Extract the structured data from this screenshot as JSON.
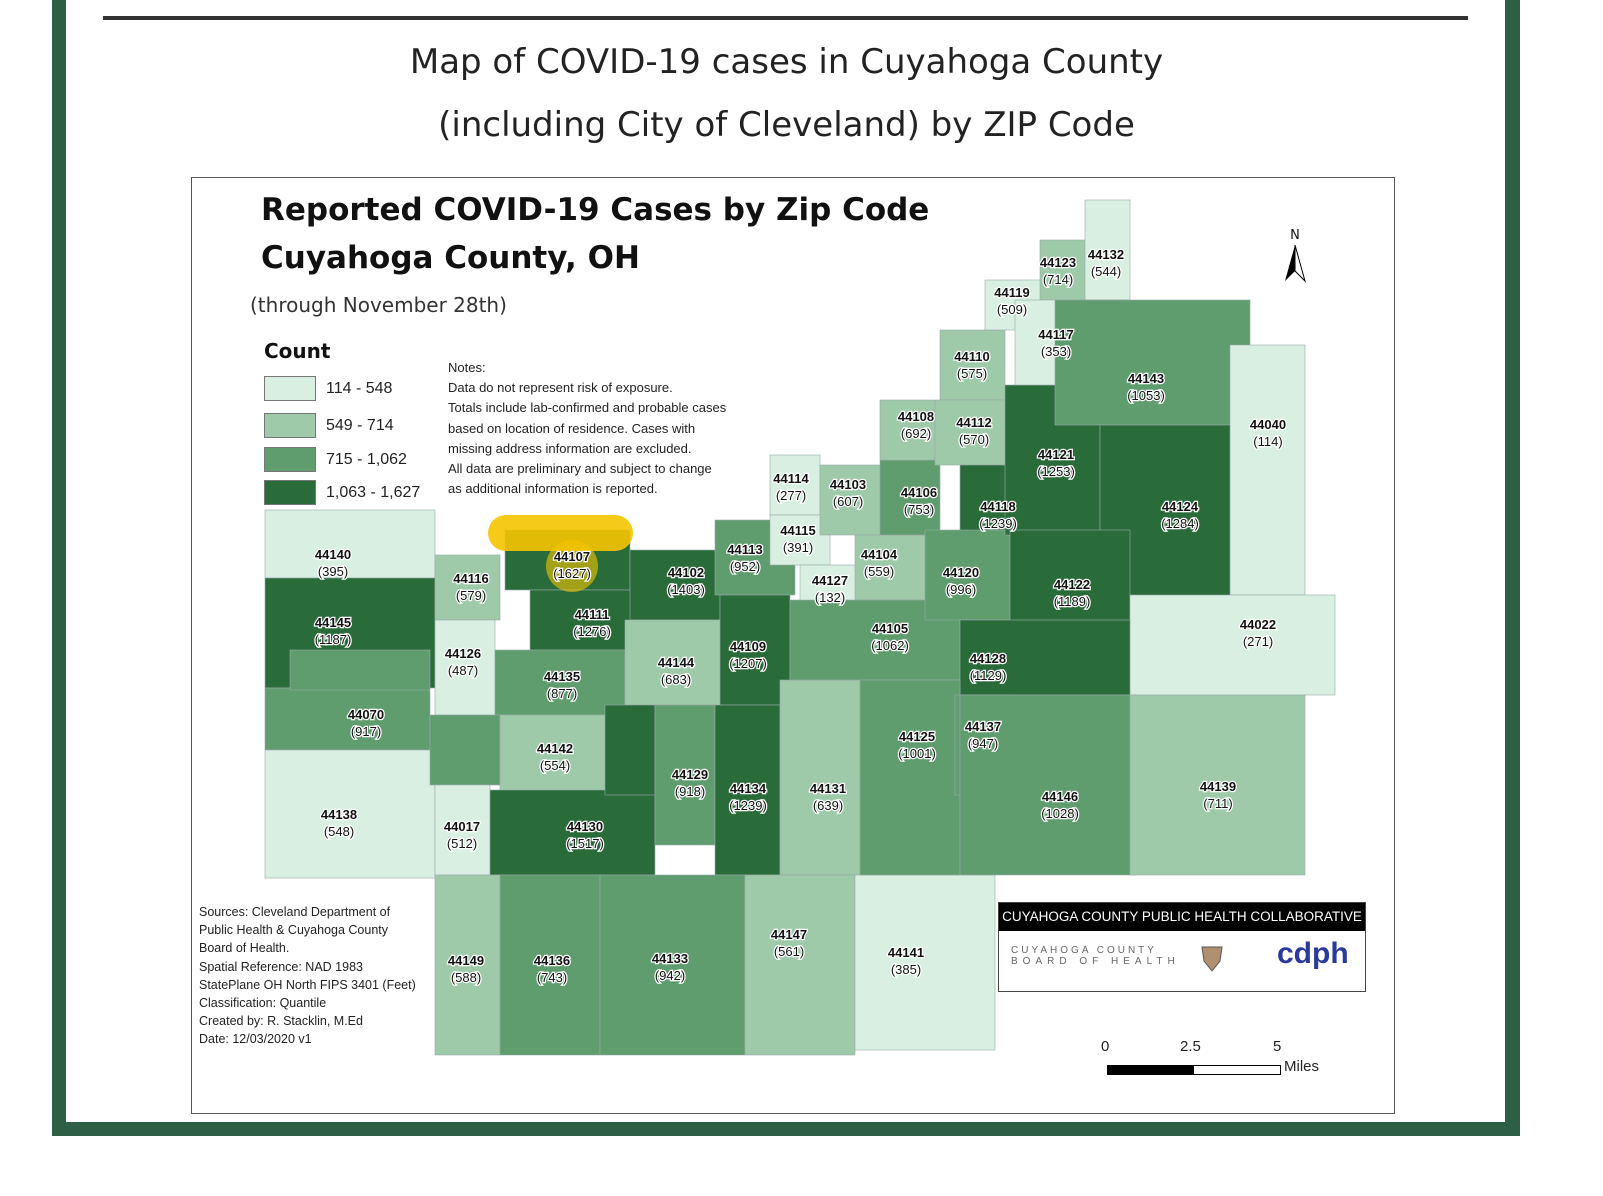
{
  "page_title_line1": "Map of COVID-19 cases in Cuyahoga County",
  "page_title_line2": "(including City of Cleveland) by ZIP Code",
  "map": {
    "title_line1": "Reported COVID-19 Cases by Zip Code",
    "title_line2": "Cuyahoga County, OH",
    "subtitle": "(through November 28th)",
    "north_label": "N",
    "legend": {
      "title": "Count",
      "classes": [
        {
          "label": "114 - 548",
          "color": "#d8efe1"
        },
        {
          "label": "549 - 714",
          "color": "#9fcaa9"
        },
        {
          "label": "715 - 1,062",
          "color": "#5f9c6e"
        },
        {
          "label": "1,063 - 1,627",
          "color": "#2a6b3a"
        }
      ]
    },
    "notes": [
      "Notes:",
      "Data do not represent risk of exposure.",
      "Totals include lab-confirmed and probable cases",
      "based on location of residence. Cases with",
      "missing address information are excluded.",
      "All data are preliminary and subject to change",
      "as additional information is reported."
    ],
    "sources": [
      "Sources: Cleveland Department of",
      "Public Health & Cuyahoga County",
      "Board of Health.",
      "Spatial Reference: NAD 1983",
      "StatePlane OH North FIPS 3401 (Feet)",
      "Classification: Quantile",
      "Created by: R. Stacklin, M.Ed",
      "Date: 12/03/2020 v1"
    ],
    "logo_header": "CUYAHOGA COUNTY PUBLIC HEALTH COLLABORATIVE",
    "logo_board_line1": "CUYAHOGA COUNTY",
    "logo_board_line2": "BOARD OF HEALTH",
    "logo_cdph": "cdph",
    "scale": {
      "ticks": [
        "0",
        "2.5",
        "5"
      ],
      "unit": "Miles"
    },
    "highlight_zip": "44107",
    "highlight_color": "#f5c400",
    "zips": [
      {
        "zip": "44140",
        "count": 395,
        "class": 0
      },
      {
        "zip": "44145",
        "count": 1187,
        "class": 3
      },
      {
        "zip": "44070",
        "count": 917,
        "class": 2
      },
      {
        "zip": "44138",
        "count": 548,
        "class": 0
      },
      {
        "zip": "44116",
        "count": 579,
        "class": 1
      },
      {
        "zip": "44107",
        "count": 1627,
        "class": 3
      },
      {
        "zip": "44111",
        "count": 1276,
        "class": 3
      },
      {
        "zip": "44126",
        "count": 487,
        "class": 0
      },
      {
        "zip": "44135",
        "count": 877,
        "class": 2
      },
      {
        "zip": "44102",
        "count": 1403,
        "class": 3
      },
      {
        "zip": "44113",
        "count": 952,
        "class": 2
      },
      {
        "zip": "44144",
        "count": 683,
        "class": 1
      },
      {
        "zip": "44109",
        "count": 1207,
        "class": 3
      },
      {
        "zip": "44142",
        "count": 554,
        "class": 1
      },
      {
        "zip": "44017",
        "count": 512,
        "class": 0
      },
      {
        "zip": "44130",
        "count": 1517,
        "class": 3
      },
      {
        "zip": "44129",
        "count": 918,
        "class": 2
      },
      {
        "zip": "44134",
        "count": 1239,
        "class": 3
      },
      {
        "zip": "44131",
        "count": 639,
        "class": 1
      },
      {
        "zip": "44149",
        "count": 588,
        "class": 1
      },
      {
        "zip": "44136",
        "count": 743,
        "class": 2
      },
      {
        "zip": "44133",
        "count": 942,
        "class": 2
      },
      {
        "zip": "44147",
        "count": 561,
        "class": 1
      },
      {
        "zip": "44141",
        "count": 385,
        "class": 0
      },
      {
        "zip": "44114",
        "count": 277,
        "class": 0
      },
      {
        "zip": "44115",
        "count": 391,
        "class": 0
      },
      {
        "zip": "44103",
        "count": 607,
        "class": 1
      },
      {
        "zip": "44127",
        "count": 132,
        "class": 0
      },
      {
        "zip": "44104",
        "count": 559,
        "class": 1
      },
      {
        "zip": "44105",
        "count": 1062,
        "class": 2
      },
      {
        "zip": "44106",
        "count": 753,
        "class": 2
      },
      {
        "zip": "44108",
        "count": 692,
        "class": 1
      },
      {
        "zip": "44110",
        "count": 575,
        "class": 1
      },
      {
        "zip": "44112",
        "count": 570,
        "class": 1
      },
      {
        "zip": "44118",
        "count": 1239,
        "class": 3
      },
      {
        "zip": "44120",
        "count": 996,
        "class": 2
      },
      {
        "zip": "44121",
        "count": 1253,
        "class": 3
      },
      {
        "zip": "44119",
        "count": 509,
        "class": 0
      },
      {
        "zip": "44123",
        "count": 714,
        "class": 1
      },
      {
        "zip": "44132",
        "count": 544,
        "class": 0
      },
      {
        "zip": "44117",
        "count": 353,
        "class": 0
      },
      {
        "zip": "44143",
        "count": 1053,
        "class": 2
      },
      {
        "zip": "44040",
        "count": 114,
        "class": 0
      },
      {
        "zip": "44124",
        "count": 1284,
        "class": 3
      },
      {
        "zip": "44122",
        "count": 1189,
        "class": 3
      },
      {
        "zip": "44022",
        "count": 271,
        "class": 0
      },
      {
        "zip": "44128",
        "count": 1129,
        "class": 3
      },
      {
        "zip": "44125",
        "count": 1001,
        "class": 2
      },
      {
        "zip": "44137",
        "count": 947,
        "class": 2
      },
      {
        "zip": "44146",
        "count": 1028,
        "class": 2
      },
      {
        "zip": "44139",
        "count": 711,
        "class": 1
      }
    ]
  }
}
